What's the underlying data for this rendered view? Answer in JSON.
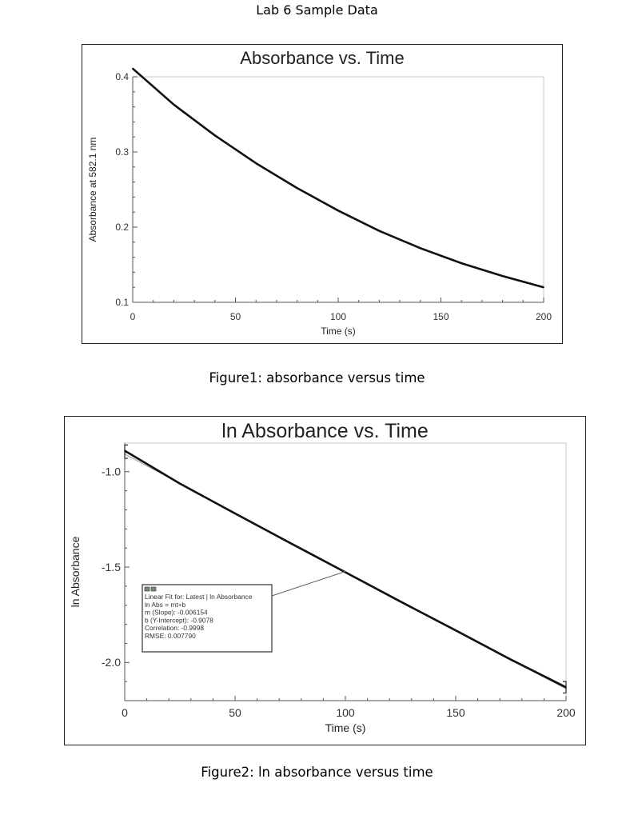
{
  "page": {
    "title": "Lab 6 Sample Data"
  },
  "captions": {
    "figure1": "Figure1:  absorbance versus time",
    "figure2": "Figure2:  ln absorbance versus time"
  },
  "chart_data": [
    {
      "type": "line",
      "title": "Absorbance vs. Time",
      "xlabel": "Time (s)",
      "ylabel": "Absorbance at 582.1 nm",
      "xlim": [
        0,
        200
      ],
      "ylim": [
        0.1,
        0.4
      ],
      "xticks": [
        0,
        50,
        100,
        150,
        200
      ],
      "yticks": [
        0.1,
        0.2,
        0.3,
        0.4
      ],
      "xtick_labels": [
        "0",
        "50",
        "100",
        "150",
        "200"
      ],
      "ytick_labels": [
        "0.1",
        "0.2",
        "0.3",
        "0.4"
      ],
      "grid": false,
      "series": [
        {
          "name": "Absorbance",
          "x": [
            0,
            20,
            40,
            60,
            80,
            100,
            120,
            140,
            160,
            180,
            200
          ],
          "y": [
            0.411,
            0.363,
            0.322,
            0.285,
            0.252,
            0.222,
            0.195,
            0.172,
            0.152,
            0.135,
            0.12
          ]
        }
      ]
    },
    {
      "type": "line",
      "title": "ln Absorbance vs. Time",
      "xlabel": "Time (s)",
      "ylabel": "ln Absorbance",
      "xlim": [
        0,
        200
      ],
      "ylim": [
        -2.2,
        -0.85
      ],
      "xticks": [
        0,
        50,
        100,
        150,
        200
      ],
      "yticks": [
        -1.0,
        -1.5,
        -2.0
      ],
      "xtick_labels": [
        "0",
        "50",
        "100",
        "150",
        "200"
      ],
      "ytick_labels": [
        "-1.0",
        "-1.5",
        "-2.0"
      ],
      "grid": false,
      "series": [
        {
          "name": "ln Absorbance",
          "x": [
            0,
            25,
            50,
            75,
            100,
            125,
            150,
            175,
            200
          ],
          "y": [
            -0.89,
            -1.062,
            -1.219,
            -1.374,
            -1.527,
            -1.681,
            -1.832,
            -1.985,
            -2.13
          ]
        }
      ],
      "fit": {
        "slope": -0.006154,
        "intercept": -0.9078,
        "anchor_point": [
          100,
          -1.523
        ]
      },
      "fit_box_lines": [
        "Linear Fit for: Latest | ln Absorbance",
        "ln Abs = mt+b",
        "m (Slope): -0.006154",
        "b (Y-Intercept): -0.9078",
        "Correlation: -0.9998",
        "RMSE: 0.007790"
      ]
    }
  ]
}
